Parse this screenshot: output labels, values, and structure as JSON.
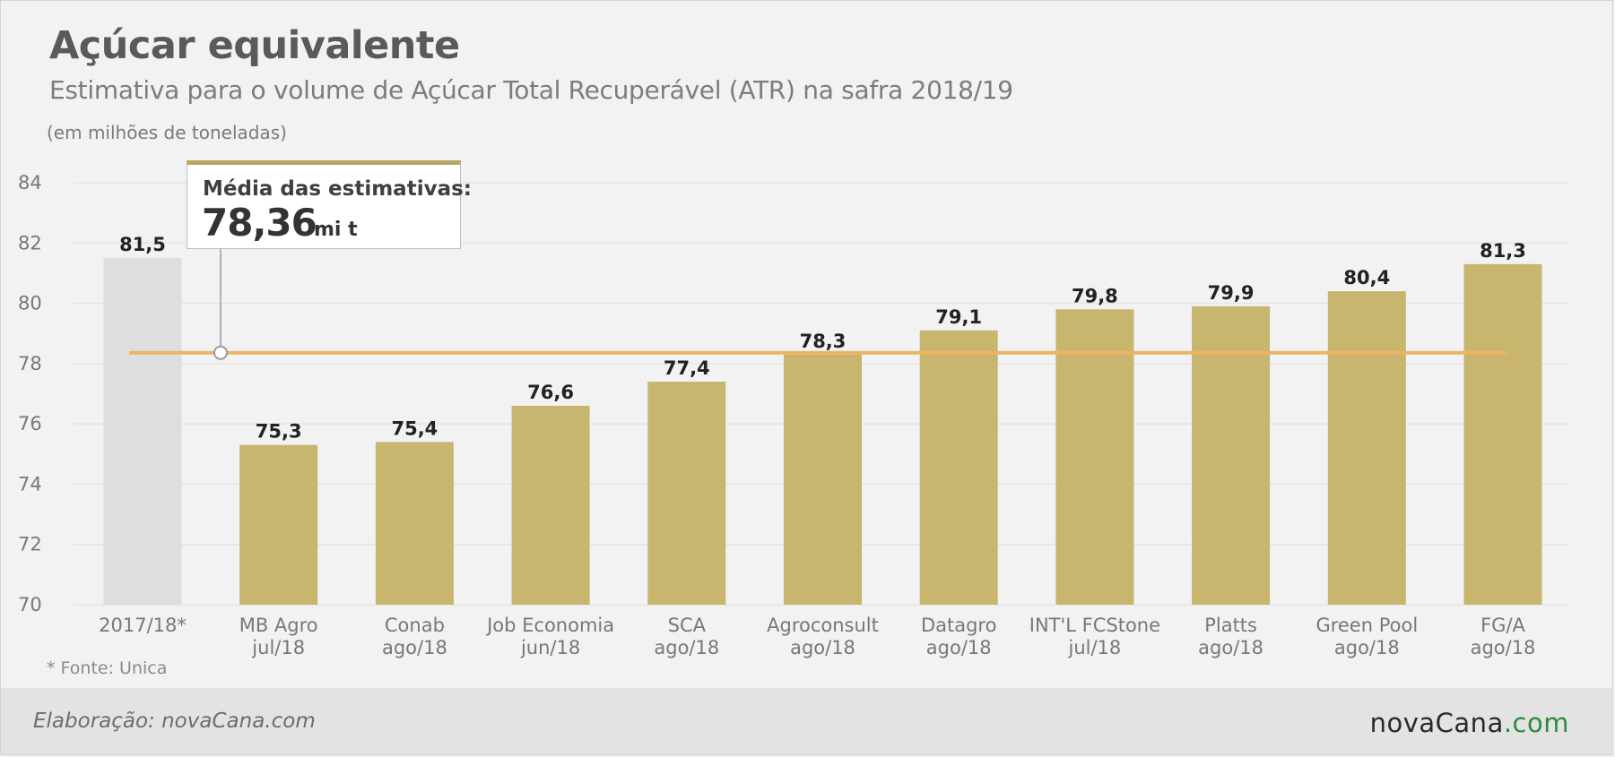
{
  "header": {
    "title": "Açúcar equivalente",
    "subtitle": "Estimativa para o volume de Açúcar Total Recuperável (ATR) na safra 2018/19",
    "unit_note": "(em milhões de toneladas)"
  },
  "average_box": {
    "label": "Média das estimativas:",
    "value": "78,36",
    "unit": "mi t"
  },
  "source_note": "* Fonte: Unica",
  "footer": {
    "credit": "Elaboração: novaCana.com",
    "logo_main": "novaCana",
    "logo_domain": ".com"
  },
  "colors": {
    "bar": "#c8b56e",
    "reference_bar": "#dedede",
    "average_line": "#ebb463",
    "grid": "#e4e4e4",
    "value_label": "#222222",
    "axis_label": "#777777"
  },
  "chart_data": {
    "type": "bar",
    "ylim": [
      70,
      84
    ],
    "yticks": [
      "70",
      "72",
      "74",
      "76",
      "78",
      "80",
      "82",
      "84"
    ],
    "grid": true,
    "average_line": 78.36,
    "categories": [
      [
        "2017/18*"
      ],
      [
        "MB Agro",
        "jul/18"
      ],
      [
        "Conab",
        "ago/18"
      ],
      [
        "Job Economia",
        "jun/18"
      ],
      [
        "SCA",
        "ago/18"
      ],
      [
        "Agroconsult",
        "ago/18"
      ],
      [
        "Datagro",
        "ago/18"
      ],
      [
        "INT'L FCStone",
        "jul/18"
      ],
      [
        "Platts",
        "ago/18"
      ],
      [
        "Green Pool",
        "ago/18"
      ],
      [
        "FG/A",
        "ago/18"
      ]
    ],
    "values": [
      81.5,
      75.3,
      75.4,
      76.6,
      77.4,
      78.3,
      79.1,
      79.8,
      79.9,
      80.4,
      81.3
    ],
    "value_labels": [
      "81,5",
      "75,3",
      "75,4",
      "76,6",
      "77,4",
      "78,3",
      "79,1",
      "79,8",
      "79,9",
      "80,4",
      "81,3"
    ],
    "reference_index": 0
  }
}
